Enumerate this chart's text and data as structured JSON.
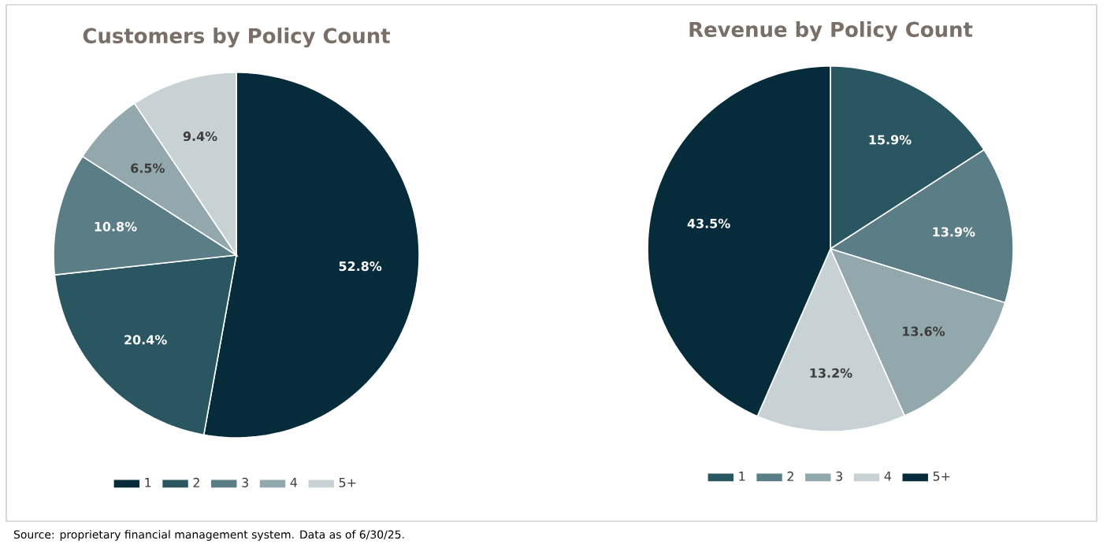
{
  "chart_data": [
    {
      "type": "pie",
      "title": "Customers by Policy Count",
      "categories": [
        "1",
        "2",
        "3",
        "4",
        "5+"
      ],
      "values": [
        52.8,
        20.4,
        10.8,
        6.5,
        9.4
      ],
      "value_labels": [
        "52.8%",
        "20.4%",
        "10.8%",
        "6.5%",
        "9.4%"
      ],
      "colors": [
        "#062b3a",
        "#2a5661",
        "#5b7d85",
        "#93a8ac",
        "#c8d2d4"
      ],
      "legend": "bottom",
      "annotations": [
        "Source: proprietary financial management system. Data as of 6/30/25."
      ]
    },
    {
      "type": "pie",
      "title": "Revenue by Policy Count",
      "categories": [
        "1",
        "2",
        "3",
        "4",
        "5+"
      ],
      "values": [
        15.9,
        13.9,
        13.6,
        13.2,
        43.5
      ],
      "value_labels": [
        "15.9%",
        "13.9%",
        "13.6%",
        "13.2%",
        "43.5%"
      ],
      "colors": [
        "#2a5661",
        "#5b7d85",
        "#93a8ac",
        "#c8d2d4",
        "#062b3a"
      ],
      "legend": "bottom"
    }
  ]
}
